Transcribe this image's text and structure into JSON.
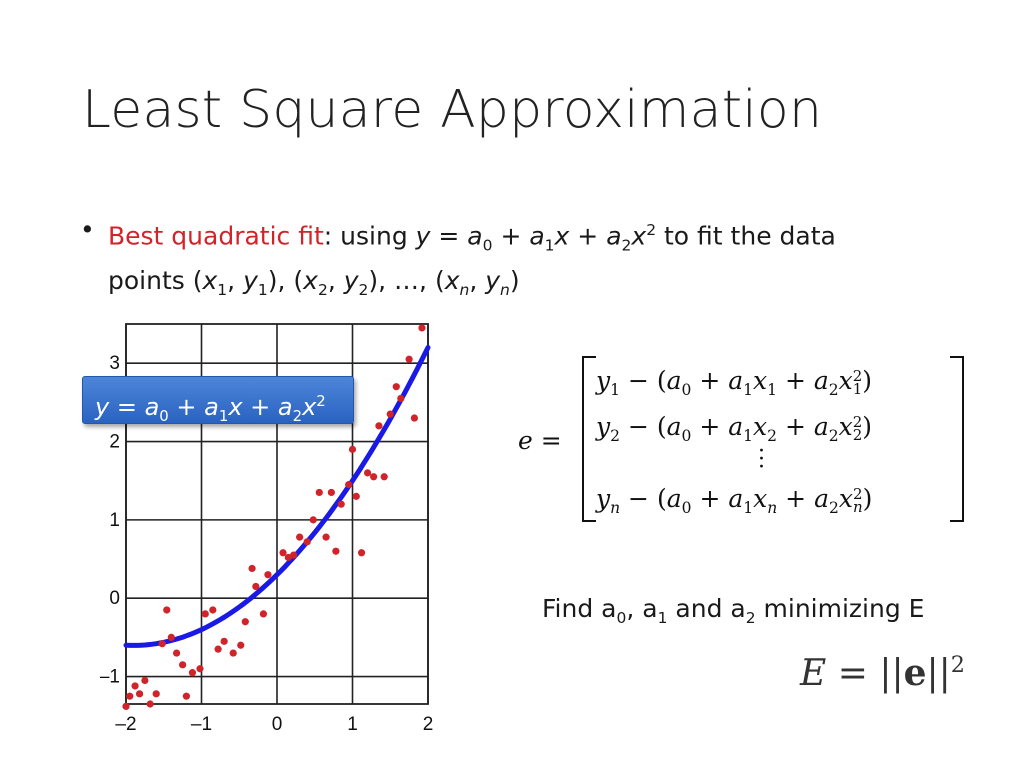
{
  "slide": {
    "title": "Least Square Approximation",
    "bullet": {
      "highlight": "Best quadratic fit",
      "colon": ": using ",
      "tail": " to fit the data",
      "line2_prefix": "points "
    },
    "equation_box": "y = a0 + a1x + a2x2",
    "find_text": "Find a0, a1 and a2 minimizing E",
    "error_formula": "E = ||e||2"
  },
  "colors": {
    "highlight": "#d0232a",
    "fit_curve": "#1a1ae6",
    "points": "#d0232a",
    "box": "#3a74cf"
  },
  "chart_data": {
    "type": "scatter",
    "x_ticks": [
      "–2",
      "–1",
      "0",
      "1",
      "2"
    ],
    "y_ticks": [
      "–1",
      "0",
      "1",
      "2",
      "3"
    ],
    "xlim": [
      -2,
      2
    ],
    "ylim": [
      -1.35,
      3.5
    ],
    "grid": true,
    "fit": {
      "a0": 0.3,
      "a1": 0.95,
      "a2": 0.25
    },
    "points": [
      [
        -2.0,
        -1.38
      ],
      [
        -1.95,
        -1.25
      ],
      [
        -1.88,
        -1.12
      ],
      [
        -1.82,
        -1.22
      ],
      [
        -1.75,
        -1.05
      ],
      [
        -1.68,
        -1.35
      ],
      [
        -1.6,
        -1.22
      ],
      [
        -1.52,
        -0.58
      ],
      [
        -1.46,
        -0.15
      ],
      [
        -1.4,
        -0.5
      ],
      [
        -1.33,
        -0.7
      ],
      [
        -1.25,
        -0.85
      ],
      [
        -1.2,
        -1.25
      ],
      [
        -1.12,
        -0.95
      ],
      [
        -1.02,
        -0.9
      ],
      [
        -0.95,
        -0.2
      ],
      [
        -0.85,
        -0.15
      ],
      [
        -0.78,
        -0.65
      ],
      [
        -0.7,
        -0.55
      ],
      [
        -0.58,
        -0.7
      ],
      [
        -0.48,
        -0.6
      ],
      [
        -0.42,
        -0.3
      ],
      [
        -0.33,
        0.38
      ],
      [
        -0.28,
        0.15
      ],
      [
        -0.18,
        -0.2
      ],
      [
        -0.12,
        0.3
      ],
      [
        0.08,
        0.58
      ],
      [
        0.15,
        0.52
      ],
      [
        0.22,
        0.55
      ],
      [
        0.3,
        0.78
      ],
      [
        0.4,
        0.72
      ],
      [
        0.48,
        1.0
      ],
      [
        0.56,
        1.35
      ],
      [
        0.65,
        0.78
      ],
      [
        0.72,
        1.35
      ],
      [
        0.78,
        0.6
      ],
      [
        0.85,
        1.2
      ],
      [
        0.95,
        1.45
      ],
      [
        1.0,
        1.9
      ],
      [
        1.05,
        1.3
      ],
      [
        1.12,
        0.58
      ],
      [
        1.2,
        1.6
      ],
      [
        1.28,
        1.55
      ],
      [
        1.35,
        2.2
      ],
      [
        1.42,
        1.55
      ],
      [
        1.5,
        2.35
      ],
      [
        1.58,
        2.7
      ],
      [
        1.64,
        2.55
      ],
      [
        1.75,
        3.05
      ],
      [
        1.82,
        2.3
      ],
      [
        1.92,
        3.45
      ]
    ]
  }
}
